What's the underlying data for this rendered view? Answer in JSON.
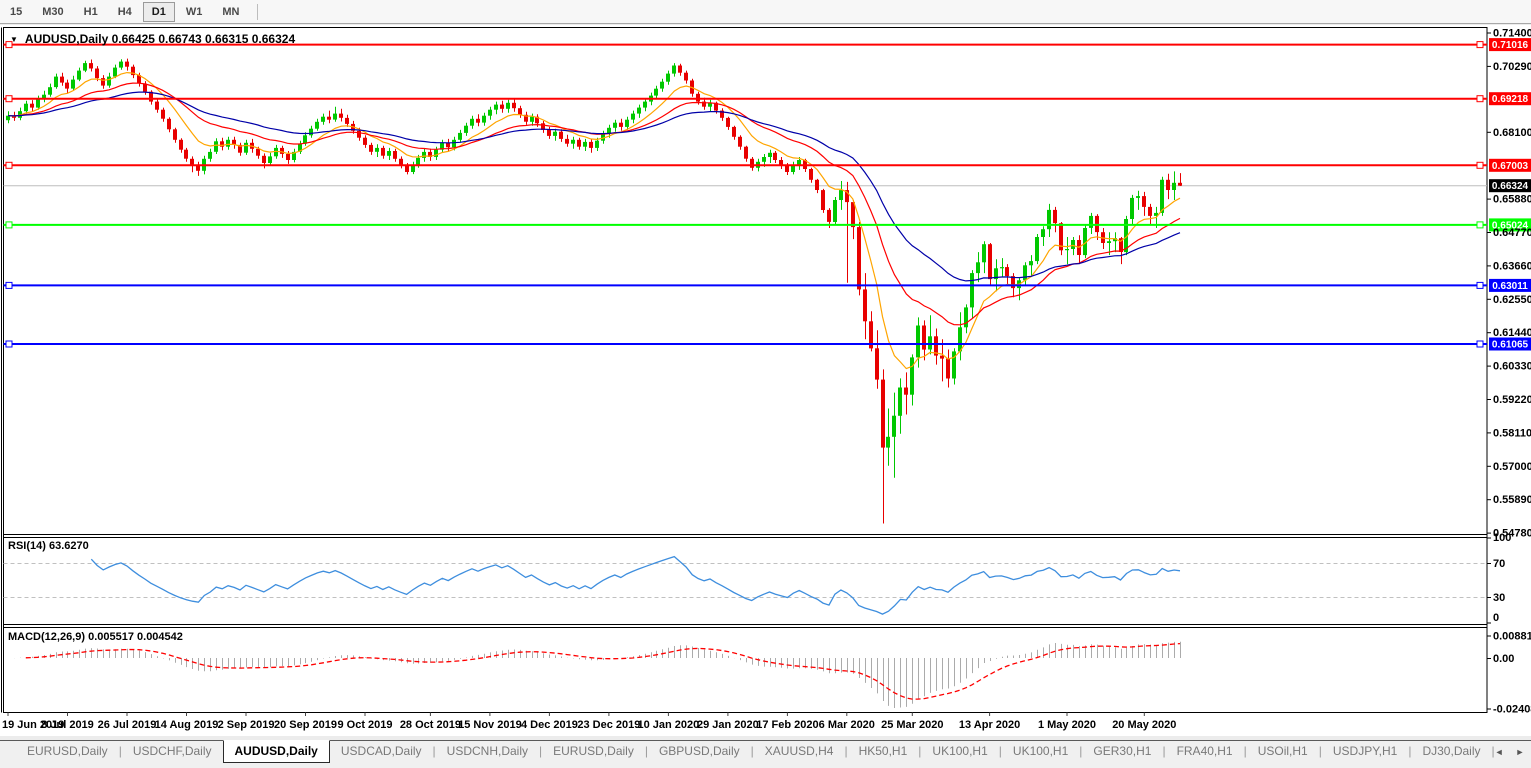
{
  "toolbar": {
    "timeframes": [
      "15",
      "M30",
      "H1",
      "H4",
      "D1",
      "W1",
      "MN"
    ],
    "active_timeframe": "D1"
  },
  "chart_header": {
    "dropdown_icon": "▼",
    "title": "AUDUSD,Daily 0.66425 0.66743 0.66315 0.66324"
  },
  "tabs": {
    "items": [
      "EURUSD,Daily",
      "USDCHF,Daily",
      "AUDUSD,Daily",
      "USDCAD,Daily",
      "USDCNH,Daily",
      "EURUSD,Daily",
      "GBPUSD,Daily",
      "XAUUSD,H4",
      "HK50,H1",
      "UK100,H1",
      "UK100,H1",
      "GER30,H1",
      "FRA40,H1",
      "USOil,H1",
      "USDJPY,H1",
      "DJ30,Daily"
    ],
    "active_index": 2,
    "scroll_left": "◄",
    "scroll_right": "►"
  },
  "chart_data": {
    "type": "candlestick",
    "symbol": "AUDUSD",
    "timeframe": "Daily",
    "ohlc": {
      "open": "0.66425",
      "high": "0.66743",
      "low": "0.66315",
      "close": "0.66324"
    },
    "price_axis": {
      "min": 0.5478,
      "max": 0.714,
      "ticks": [
        "0.71400",
        "0.70290",
        "0.68100",
        "0.65880",
        "0.64770",
        "0.63660",
        "0.62550",
        "0.61440",
        "0.60330",
        "0.59220",
        "0.58110",
        "0.57000",
        "0.55890",
        "0.54780"
      ]
    },
    "time_axis": {
      "labels": [
        {
          "text": "19 Jun 2019",
          "bar": 0
        },
        {
          "text": "8 Jul 2019",
          "bar": 10
        },
        {
          "text": "26 Jul 2019",
          "bar": 20
        },
        {
          "text": "14 Aug 2019",
          "bar": 30
        },
        {
          "text": "2 Sep 2019",
          "bar": 40
        },
        {
          "text": "20 Sep 2019",
          "bar": 50
        },
        {
          "text": "9 Oct 2019",
          "bar": 60
        },
        {
          "text": "28 Oct 2019",
          "bar": 71
        },
        {
          "text": "15 Nov 2019",
          "bar": 81
        },
        {
          "text": "4 Dec 2019",
          "bar": 91
        },
        {
          "text": "23 Dec 2019",
          "bar": 101
        },
        {
          "text": "10 Jan 2020",
          "bar": 111
        },
        {
          "text": "29 Jan 2020",
          "bar": 121
        },
        {
          "text": "17 Feb 2020",
          "bar": 131
        },
        {
          "text": "6 Mar 2020",
          "bar": 141
        },
        {
          "text": "25 Mar 2020",
          "bar": 152
        },
        {
          "text": "13 Apr 2020",
          "bar": 165
        },
        {
          "text": "1 May 2020",
          "bar": 178
        },
        {
          "text": "20 May 2020",
          "bar": 191
        }
      ]
    },
    "colors": {
      "up_candle": "#00C800",
      "down_candle": "#E80000",
      "current_price_line": "#BDBDBD",
      "resistance_line": "#FF0000",
      "support_green": "#00FF00",
      "support_blue": "#0000FF"
    },
    "hlines": [
      {
        "price": 0.71016,
        "label": "0.71016",
        "color": "#FF0000"
      },
      {
        "price": 0.69218,
        "label": "0.69218",
        "color": "#FF0000"
      },
      {
        "price": 0.67003,
        "label": "0.67003",
        "color": "#FF0000"
      },
      {
        "price": 0.65024,
        "label": "0.65024",
        "color": "#00FF00"
      },
      {
        "price": 0.63011,
        "label": "0.63011",
        "color": "#0000FF"
      },
      {
        "price": 0.61065,
        "label": "0.61065",
        "color": "#0000FF"
      }
    ],
    "current_price": {
      "price": 0.66324,
      "label": "0.66324",
      "line_color": "#BDBDBD",
      "box_color": "#000000"
    },
    "moving_averages": [
      {
        "name": "ma-fast",
        "method": "ema",
        "period": 9,
        "color": "#FFA500"
      },
      {
        "name": "ma-medium",
        "method": "ema",
        "period": 22,
        "color": "#FF0000"
      },
      {
        "name": "ma-slow",
        "method": "ema",
        "period": 40,
        "color": "#0000A8"
      }
    ],
    "rsi": {
      "label": "RSI(14) 63.6270",
      "period": 14,
      "value": 63.627,
      "levels": [
        70,
        30
      ],
      "axis_ticks": [
        "100",
        "70",
        "30",
        "0"
      ],
      "color": "#3E8EDE"
    },
    "macd": {
      "label": "MACD(12,26,9) 0.005517 0.004542",
      "fast": 12,
      "slow": 26,
      "signal": 9,
      "value": 0.005517,
      "signal_value": 0.004542,
      "axis_ticks": [
        "0.008815",
        "0.00",
        "-0.02408"
      ],
      "histogram_color": "#ABABAB",
      "signal_color": "#FF0000"
    },
    "first_open": 0.685,
    "candles": [
      [
        0.6865,
        0.688,
        0.684
      ],
      [
        0.6858,
        0.6878,
        0.6848
      ],
      [
        0.688,
        0.6892,
        0.685
      ],
      [
        0.6905,
        0.6915,
        0.6872
      ],
      [
        0.6892,
        0.6917,
        0.688
      ],
      [
        0.692,
        0.6932,
        0.6885
      ],
      [
        0.6935,
        0.6948,
        0.691
      ],
      [
        0.696,
        0.6972,
        0.6928
      ],
      [
        0.6995,
        0.7005,
        0.6955
      ],
      [
        0.6975,
        0.7008,
        0.6965
      ],
      [
        0.6955,
        0.6985,
        0.694
      ],
      [
        0.6985,
        0.6998,
        0.695
      ],
      [
        0.7015,
        0.7025,
        0.698
      ],
      [
        0.704,
        0.7048,
        0.701
      ],
      [
        0.7022,
        0.7052,
        0.7012
      ],
      [
        0.699,
        0.703,
        0.698
      ],
      [
        0.6965,
        0.7,
        0.6955
      ],
      [
        0.6995,
        0.7008,
        0.6958
      ],
      [
        0.7025,
        0.7035,
        0.699
      ],
      [
        0.7045,
        0.7053,
        0.7018
      ],
      [
        0.7028,
        0.7055,
        0.7015
      ],
      [
        0.7,
        0.7035,
        0.699
      ],
      [
        0.6972,
        0.7008,
        0.6962
      ],
      [
        0.6945,
        0.698,
        0.6935
      ],
      [
        0.6912,
        0.695,
        0.6902
      ],
      [
        0.6885,
        0.692,
        0.6875
      ],
      [
        0.6855,
        0.6892,
        0.6845
      ],
      [
        0.682,
        0.686,
        0.681
      ],
      [
        0.6785,
        0.6825,
        0.6775
      ],
      [
        0.6752,
        0.679,
        0.6742
      ],
      [
        0.6722,
        0.6758,
        0.6712
      ],
      [
        0.67,
        0.673,
        0.6677
      ],
      [
        0.6682,
        0.6712,
        0.6665
      ],
      [
        0.6722,
        0.6732,
        0.667
      ],
      [
        0.6745,
        0.6755,
        0.6712
      ],
      [
        0.678,
        0.679,
        0.6738
      ],
      [
        0.6762,
        0.6792,
        0.675
      ],
      [
        0.6785,
        0.6795,
        0.6752
      ],
      [
        0.6768,
        0.6795,
        0.6755
      ],
      [
        0.6742,
        0.6775,
        0.6732
      ],
      [
        0.6775,
        0.6785,
        0.6735
      ],
      [
        0.6755,
        0.6788,
        0.6742
      ],
      [
        0.6732,
        0.6762,
        0.6722
      ],
      [
        0.6708,
        0.674,
        0.669
      ],
      [
        0.673,
        0.6742,
        0.6698
      ],
      [
        0.6758,
        0.6768,
        0.6722
      ],
      [
        0.6738,
        0.6765,
        0.6725
      ],
      [
        0.6718,
        0.6748,
        0.6705
      ],
      [
        0.6745,
        0.6755,
        0.671
      ],
      [
        0.6772,
        0.6782,
        0.6738
      ],
      [
        0.68,
        0.681,
        0.6765
      ],
      [
        0.6822,
        0.6832,
        0.6792
      ],
      [
        0.6845,
        0.6855,
        0.6815
      ],
      [
        0.6862,
        0.6872,
        0.6835
      ],
      [
        0.6852,
        0.6882,
        0.684
      ],
      [
        0.6872,
        0.6895,
        0.6845
      ],
      [
        0.6858,
        0.6888,
        0.6846
      ],
      [
        0.6838,
        0.6868,
        0.6828
      ],
      [
        0.6815,
        0.6848,
        0.6805
      ],
      [
        0.6792,
        0.6825,
        0.6782
      ],
      [
        0.6768,
        0.68,
        0.6758
      ],
      [
        0.6745,
        0.6775,
        0.6735
      ],
      [
        0.6758,
        0.677,
        0.6728
      ],
      [
        0.6732,
        0.6765,
        0.6722
      ],
      [
        0.6748,
        0.6758,
        0.6718
      ],
      [
        0.6722,
        0.6755,
        0.6712
      ],
      [
        0.67,
        0.673,
        0.669
      ],
      [
        0.6678,
        0.6708,
        0.667
      ],
      [
        0.6702,
        0.6712,
        0.6671
      ],
      [
        0.6725,
        0.6735,
        0.6692
      ],
      [
        0.6745,
        0.6755,
        0.6712
      ],
      [
        0.6728,
        0.6755,
        0.6715
      ],
      [
        0.6752,
        0.6762,
        0.6718
      ],
      [
        0.6775,
        0.6785,
        0.6742
      ],
      [
        0.676,
        0.6788,
        0.6748
      ],
      [
        0.6785,
        0.6795,
        0.675
      ],
      [
        0.6808,
        0.6818,
        0.6775
      ],
      [
        0.6832,
        0.6842,
        0.6798
      ],
      [
        0.6855,
        0.6865,
        0.6822
      ],
      [
        0.6842,
        0.687,
        0.683
      ],
      [
        0.6865,
        0.6875,
        0.6832
      ],
      [
        0.6885,
        0.6895,
        0.6852
      ],
      [
        0.6902,
        0.6912,
        0.687
      ],
      [
        0.6888,
        0.6915,
        0.6875
      ],
      [
        0.6908,
        0.6918,
        0.6875
      ],
      [
        0.689,
        0.692,
        0.6878
      ],
      [
        0.6868,
        0.6898,
        0.6858
      ],
      [
        0.6845,
        0.6878,
        0.6835
      ],
      [
        0.6862,
        0.6872,
        0.6832
      ],
      [
        0.684,
        0.687,
        0.6828
      ],
      [
        0.6818,
        0.6848,
        0.6808
      ],
      [
        0.6798,
        0.6828,
        0.6788
      ],
      [
        0.6812,
        0.6822,
        0.6782
      ],
      [
        0.6788,
        0.682,
        0.6778
      ],
      [
        0.6772,
        0.6802,
        0.6762
      ],
      [
        0.6785,
        0.6795,
        0.6755
      ],
      [
        0.6762,
        0.6792,
        0.6752
      ],
      [
        0.6778,
        0.6788,
        0.6748
      ],
      [
        0.6758,
        0.6788,
        0.6742
      ],
      [
        0.6782,
        0.6792,
        0.6748
      ],
      [
        0.6805,
        0.6815,
        0.6772
      ],
      [
        0.6825,
        0.6835,
        0.6792
      ],
      [
        0.6842,
        0.6852,
        0.6812
      ],
      [
        0.6828,
        0.6855,
        0.6815
      ],
      [
        0.6852,
        0.6862,
        0.6818
      ],
      [
        0.6872,
        0.6882,
        0.684
      ],
      [
        0.6892,
        0.6902,
        0.6858
      ],
      [
        0.6912,
        0.6922,
        0.688
      ],
      [
        0.6932,
        0.6942,
        0.69
      ],
      [
        0.6955,
        0.6965,
        0.6922
      ],
      [
        0.6978,
        0.6988,
        0.6945
      ],
      [
        0.7005,
        0.7015,
        0.6968
      ],
      [
        0.7032,
        0.704,
        0.6995
      ],
      [
        0.7008,
        0.7038,
        0.6998
      ],
      [
        0.6982,
        0.7015,
        0.6972
      ],
      [
        0.6938,
        0.6988,
        0.6928
      ],
      [
        0.6912,
        0.6945,
        0.6902
      ],
      [
        0.6895,
        0.6925,
        0.6885
      ],
      [
        0.6908,
        0.6918,
        0.6878
      ],
      [
        0.6882,
        0.6912,
        0.6872
      ],
      [
        0.6858,
        0.689,
        0.6848
      ],
      [
        0.6828,
        0.6862,
        0.6818
      ],
      [
        0.6795,
        0.6832,
        0.6785
      ],
      [
        0.6762,
        0.68,
        0.6752
      ],
      [
        0.6722,
        0.6765,
        0.6712
      ],
      [
        0.6692,
        0.6728,
        0.6682
      ],
      [
        0.6712,
        0.6722,
        0.668
      ],
      [
        0.6728,
        0.6738,
        0.6695
      ],
      [
        0.6742,
        0.6752,
        0.6708
      ],
      [
        0.6718,
        0.6748,
        0.6708
      ],
      [
        0.6698,
        0.6728,
        0.6688
      ],
      [
        0.6678,
        0.6708,
        0.6668
      ],
      [
        0.6702,
        0.6712,
        0.667
      ],
      [
        0.6718,
        0.6728,
        0.6685
      ],
      [
        0.6688,
        0.6722,
        0.6678
      ],
      [
        0.6652,
        0.6692,
        0.6642
      ],
      [
        0.6618,
        0.6655,
        0.6608
      ],
      [
        0.6552,
        0.6622,
        0.6542
      ],
      [
        0.6512,
        0.6558,
        0.6492
      ],
      [
        0.6585,
        0.6595,
        0.6505
      ],
      [
        0.6618,
        0.6648,
        0.6552
      ],
      [
        0.6578,
        0.6645,
        0.631
      ],
      [
        0.6495,
        0.6585,
        0.6455
      ],
      [
        0.6288,
        0.6512,
        0.6268
      ],
      [
        0.6182,
        0.6342,
        0.6122
      ],
      [
        0.6092,
        0.6215,
        0.6082
      ],
      [
        0.5988,
        0.6152,
        0.5958
      ],
      [
        0.5762,
        0.6022,
        0.551
      ],
      [
        0.5798,
        0.5892,
        0.5702
      ],
      [
        0.5868,
        0.5945,
        0.5662
      ],
      [
        0.5962,
        0.5992,
        0.5808
      ],
      [
        0.5938,
        0.6012,
        0.5872
      ],
      [
        0.6062,
        0.6072,
        0.5902
      ],
      [
        0.6168,
        0.6195,
        0.6028
      ],
      [
        0.6088,
        0.6185,
        0.6052
      ],
      [
        0.6132,
        0.6202,
        0.6072
      ],
      [
        0.6068,
        0.6158,
        0.6038
      ],
      [
        0.6058,
        0.6122,
        0.5982
      ],
      [
        0.5992,
        0.6088,
        0.5962
      ],
      [
        0.6082,
        0.6092,
        0.5972
      ],
      [
        0.6162,
        0.6212,
        0.6052
      ],
      [
        0.6228,
        0.6238,
        0.6142
      ],
      [
        0.6342,
        0.6352,
        0.6192
      ],
      [
        0.6378,
        0.6412,
        0.6312
      ],
      [
        0.6438,
        0.6448,
        0.6342
      ],
      [
        0.6322,
        0.6442,
        0.6302
      ],
      [
        0.6358,
        0.6388,
        0.6282
      ],
      [
        0.6362,
        0.6392,
        0.6328
      ],
      [
        0.6332,
        0.6372,
        0.6302
      ],
      [
        0.6292,
        0.6342,
        0.6262
      ],
      [
        0.6318,
        0.6328,
        0.6252
      ],
      [
        0.6368,
        0.6378,
        0.6302
      ],
      [
        0.6382,
        0.6402,
        0.6332
      ],
      [
        0.6462,
        0.6472,
        0.6372
      ],
      [
        0.6488,
        0.6498,
        0.6432
      ],
      [
        0.6552,
        0.6572,
        0.6462
      ],
      [
        0.6508,
        0.6562,
        0.6478
      ],
      [
        0.6418,
        0.6512,
        0.6402
      ],
      [
        0.6422,
        0.6462,
        0.6372
      ],
      [
        0.6452,
        0.6462,
        0.6402
      ],
      [
        0.6402,
        0.6468,
        0.6372
      ],
      [
        0.6492,
        0.6502,
        0.6392
      ],
      [
        0.6532,
        0.6542,
        0.6472
      ],
      [
        0.6478,
        0.6538,
        0.6452
      ],
      [
        0.6442,
        0.6492,
        0.6422
      ],
      [
        0.6448,
        0.6478,
        0.6402
      ],
      [
        0.6458,
        0.6478,
        0.6412
      ],
      [
        0.6412,
        0.6462,
        0.6372
      ],
      [
        0.6522,
        0.6532,
        0.6402
      ],
      [
        0.6592,
        0.6602,
        0.6502
      ],
      [
        0.6598,
        0.6616,
        0.6552
      ],
      [
        0.6562,
        0.6612,
        0.6532
      ],
      [
        0.6532,
        0.6572,
        0.6502
      ],
      [
        0.6542,
        0.6562,
        0.6492
      ],
      [
        0.6652,
        0.6662,
        0.6532
      ],
      [
        0.6618,
        0.6672,
        0.6588
      ],
      [
        0.6642,
        0.668,
        0.6585
      ],
      [
        0.66324,
        0.66743,
        0.66315
      ]
    ]
  }
}
